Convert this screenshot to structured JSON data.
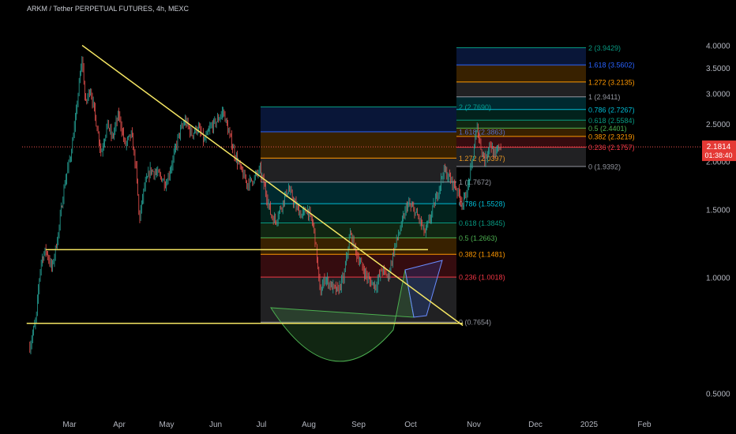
{
  "header": {
    "title": "ARKM / Tether PERPETUAL FUTURES, 4h, MEXC"
  },
  "colors": {
    "background": "#000000",
    "up": "#26a69a",
    "down": "#ef5350",
    "trendline": "#f5e663",
    "last_price_bg": "#e53935",
    "axis_text": "#b2b5be"
  },
  "chart_data": {
    "type": "candlestick",
    "symbol": "ARKM / Tether PERPETUAL FUTURES",
    "interval": "4h",
    "exchange": "MEXC",
    "x_ticks": [
      "Mar",
      "Apr",
      "May",
      "Jun",
      "Jul",
      "Aug",
      "Sep",
      "Oct",
      "Nov",
      "Dec",
      "2025",
      "Feb"
    ],
    "y_ticks": [
      "4.0000",
      "3.5000",
      "3.0000",
      "2.5000",
      "2.0000",
      "1.5000",
      "1.0000",
      "0.5000"
    ],
    "y_scale": "log",
    "ylim": [
      0.45,
      4.2
    ],
    "last_price": "2.1814",
    "countdown": "01:38:40",
    "price_path": [
      [
        "2024-02-04",
        0.66
      ],
      [
        "2024-02-08",
        0.78
      ],
      [
        "2024-02-11",
        1.1
      ],
      [
        "2024-02-14",
        1.18
      ],
      [
        "2024-02-18",
        1.05
      ],
      [
        "2024-02-22",
        1.3
      ],
      [
        "2024-02-26",
        1.75
      ],
      [
        "2024-03-01",
        2.1
      ],
      [
        "2024-03-04",
        2.6
      ],
      [
        "2024-03-08",
        3.7
      ],
      [
        "2024-03-10",
        2.8
      ],
      [
        "2024-03-13",
        3.1
      ],
      [
        "2024-03-17",
        2.5
      ],
      [
        "2024-03-20",
        2.1
      ],
      [
        "2024-03-24",
        2.5
      ],
      [
        "2024-03-27",
        2.3
      ],
      [
        "2024-03-31",
        2.65
      ],
      [
        "2024-04-04",
        2.2
      ],
      [
        "2024-04-08",
        2.35
      ],
      [
        "2024-04-11",
        1.9
      ],
      [
        "2024-04-13",
        1.4
      ],
      [
        "2024-04-16",
        1.7
      ],
      [
        "2024-04-20",
        1.9
      ],
      [
        "2024-04-25",
        1.85
      ],
      [
        "2024-04-30",
        1.75
      ],
      [
        "2024-05-04",
        2.0
      ],
      [
        "2024-05-08",
        2.35
      ],
      [
        "2024-05-12",
        2.55
      ],
      [
        "2024-05-16",
        2.35
      ],
      [
        "2024-05-20",
        2.45
      ],
      [
        "2024-05-24",
        2.25
      ],
      [
        "2024-05-28",
        2.45
      ],
      [
        "2024-06-01",
        2.55
      ],
      [
        "2024-06-05",
        2.7
      ],
      [
        "2024-06-08",
        2.4
      ],
      [
        "2024-06-12",
        2.1
      ],
      [
        "2024-06-16",
        1.9
      ],
      [
        "2024-06-20",
        1.75
      ],
      [
        "2024-06-24",
        1.8
      ],
      [
        "2024-06-28",
        1.9
      ],
      [
        "2024-07-02",
        1.65
      ],
      [
        "2024-07-05",
        1.45
      ],
      [
        "2024-07-08",
        1.4
      ],
      [
        "2024-07-12",
        1.55
      ],
      [
        "2024-07-16",
        1.7
      ],
      [
        "2024-07-20",
        1.55
      ],
      [
        "2024-07-24",
        1.45
      ],
      [
        "2024-07-28",
        1.5
      ],
      [
        "2024-08-01",
        1.35
      ],
      [
        "2024-08-05",
        0.9
      ],
      [
        "2024-08-08",
        1.0
      ],
      [
        "2024-08-12",
        0.95
      ],
      [
        "2024-08-16",
        0.92
      ],
      [
        "2024-08-20",
        1.0
      ],
      [
        "2024-08-24",
        1.3
      ],
      [
        "2024-08-28",
        1.15
      ],
      [
        "2024-09-01",
        1.05
      ],
      [
        "2024-09-05",
        0.98
      ],
      [
        "2024-09-09",
        0.95
      ],
      [
        "2024-09-13",
        1.05
      ],
      [
        "2024-09-17",
        1.0
      ],
      [
        "2024-09-21",
        1.2
      ],
      [
        "2024-09-25",
        1.35
      ],
      [
        "2024-09-29",
        1.55
      ],
      [
        "2024-10-03",
        1.5
      ],
      [
        "2024-10-07",
        1.4
      ],
      [
        "2024-10-10",
        1.3
      ],
      [
        "2024-10-14",
        1.45
      ],
      [
        "2024-10-18",
        1.65
      ],
      [
        "2024-10-22",
        1.9
      ],
      [
        "2024-10-26",
        1.8
      ],
      [
        "2024-10-30",
        1.7
      ],
      [
        "2024-11-03",
        1.55
      ],
      [
        "2024-11-06",
        1.7
      ],
      [
        "2024-11-09",
        2.0
      ],
      [
        "2024-11-12",
        2.45
      ],
      [
        "2024-11-14",
        2.2
      ],
      [
        "2024-11-17",
        2.0
      ],
      [
        "2024-11-20",
        2.25
      ],
      [
        "2024-11-23",
        2.05
      ],
      [
        "2024-11-26",
        2.2
      ],
      [
        "2024-11-27",
        2.18
      ]
    ],
    "fib_left": {
      "levels": [
        {
          "ratio": "0",
          "price": "0.7654",
          "color": "#9598a1"
        },
        {
          "ratio": "0.236",
          "price": "1.0018",
          "color": "#f23645"
        },
        {
          "ratio": "0.382",
          "price": "1.1481",
          "color": "#ff9800"
        },
        {
          "ratio": "0.5",
          "price": "1.2663",
          "color": "#4caf50"
        },
        {
          "ratio": "0.618",
          "price": "1.3845",
          "color": "#089981"
        },
        {
          "ratio": "0.786",
          "price": "1.5528",
          "color": "#00bcd4"
        },
        {
          "ratio": "1",
          "price": "1.7672",
          "color": "#9598a1"
        },
        {
          "ratio": "1.272",
          "price": "2.0397",
          "color": "#ff9800"
        },
        {
          "ratio": "1.618",
          "price": "2.3863",
          "color": "#2962ff"
        },
        {
          "ratio": "2",
          "price": "2.7690",
          "color": "#089981"
        }
      ]
    },
    "fib_right": {
      "levels": [
        {
          "ratio": "0",
          "price": "1.9392",
          "color": "#9598a1"
        },
        {
          "ratio": "0.236",
          "price": "2.1757",
          "color": "#f23645"
        },
        {
          "ratio": "0.382",
          "price": "2.3219",
          "color": "#ff9800"
        },
        {
          "ratio": "0.5",
          "price": "2.4401",
          "color": "#4caf50"
        },
        {
          "ratio": "0.618",
          "price": "2.5584",
          "color": "#089981"
        },
        {
          "ratio": "0.786",
          "price": "2.7267",
          "color": "#00bcd4"
        },
        {
          "ratio": "1",
          "price": "2.9411",
          "color": "#9598a1"
        },
        {
          "ratio": "1.272",
          "price": "3.2135",
          "color": "#ff9800"
        },
        {
          "ratio": "1.618",
          "price": "3.5602",
          "color": "#2962ff"
        },
        {
          "ratio": "2",
          "price": "3.9429",
          "color": "#089981"
        }
      ]
    },
    "trendlines": [
      {
        "name": "descending-trendline",
        "from": [
          "2024-03-08",
          4.0
        ],
        "to": [
          "2024-11-03",
          0.75
        ]
      },
      {
        "name": "support-line-upper",
        "from": [
          "2024-02-14",
          1.18
        ],
        "to": [
          "2024-10-12",
          1.18
        ]
      },
      {
        "name": "support-line-lower",
        "from": [
          "2024-02-02",
          0.76
        ],
        "to": [
          "2024-11-03",
          0.76
        ]
      }
    ]
  }
}
